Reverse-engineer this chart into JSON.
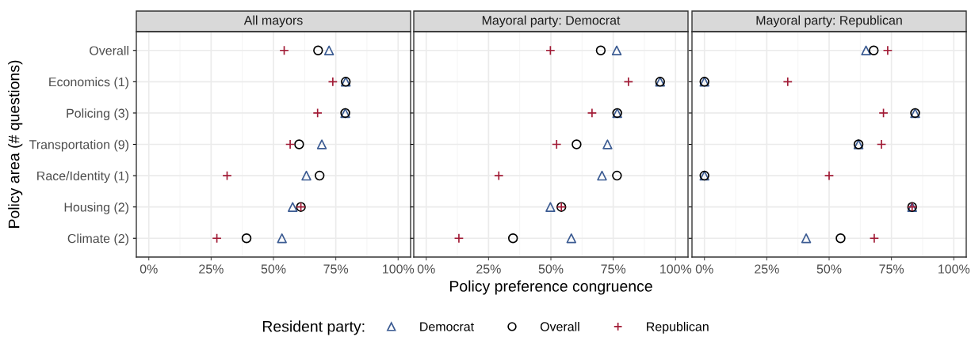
{
  "chart_data": [
    {
      "type": "scatter",
      "title": "All mayors",
      "ylabel": "Policy area (# questions)",
      "orientation": "horizontal",
      "categories": [
        "Overall",
        "Economics (1)",
        "Policing (3)",
        "Transportation (9)",
        "Race/Identity (1)",
        "Housing (2)",
        "Climate (2)"
      ],
      "xlim": [
        -5,
        105
      ],
      "xticks": [
        {
          "value": 0,
          "label": "0%"
        },
        {
          "value": 25,
          "label": "25%"
        },
        {
          "value": 50,
          "label": "50%"
        },
        {
          "value": 75,
          "label": "75%"
        },
        {
          "value": 100,
          "label": "100%"
        }
      ],
      "grid": true,
      "series": [
        {
          "color": "#3b5b92",
          "marker": "triangle",
          "values": [
            72.3,
            79,
            78.8,
            69.4,
            63.2,
            57.7,
            53.4
          ]
        },
        {
          "color": "#000000",
          "marker": "circle",
          "values": [
            67.9,
            79,
            78.8,
            60.3,
            68.5,
            61,
            39.2
          ]
        },
        {
          "color": "#a11a35",
          "marker": "cross",
          "values": [
            54.3,
            73.8,
            67.7,
            56.7,
            31.4,
            61,
            27.3
          ]
        }
      ]
    },
    {
      "type": "scatter",
      "title": "Mayoral party: Democrat",
      "xlabel": "Policy preference congruence",
      "legend_title": "Resident party:",
      "legend": "bottom",
      "tick_labels": "x",
      "orientation": "horizontal",
      "categories": [
        null,
        null,
        null,
        null,
        null,
        null,
        null
      ],
      "xlim": [
        -5,
        105
      ],
      "xticks": [
        {
          "value": 0,
          "label": "0%"
        },
        {
          "value": 25,
          "label": "25%"
        },
        {
          "value": 50,
          "label": "50%"
        },
        {
          "value": 75,
          "label": "75%"
        },
        {
          "value": 100,
          "label": "100%"
        }
      ],
      "grid": true,
      "series": [
        {
          "name": "Democrat",
          "color": "#3b5b92",
          "marker": "triangle",
          "values": [
            76.4,
            93.8,
            76.6,
            72.7,
            70.5,
            49.8,
            58.2
          ]
        },
        {
          "name": "Overall",
          "color": "#000000",
          "marker": "circle",
          "values": [
            70,
            93.8,
            76.6,
            60.3,
            76.5,
            54.2,
            34.8
          ]
        },
        {
          "name": "Republican",
          "color": "#a11a35",
          "marker": "cross",
          "values": [
            49.8,
            81.1,
            66.5,
            52.3,
            29.1,
            54.2,
            13.1
          ]
        }
      ]
    },
    {
      "type": "scatter",
      "title": "Mayoral party: Republican",
      "tick_labels": "x",
      "orientation": "horizontal",
      "categories": [
        null,
        null,
        null,
        null,
        null,
        null,
        null
      ],
      "xlim": [
        -5,
        105
      ],
      "xticks": [
        {
          "value": 0,
          "label": "0%"
        },
        {
          "value": 25,
          "label": "25%"
        },
        {
          "value": 50,
          "label": "50%"
        },
        {
          "value": 75,
          "label": "75%"
        },
        {
          "value": 100,
          "label": "100%"
        }
      ],
      "grid": true,
      "series": [
        {
          "color": "#3b5b92",
          "marker": "triangle",
          "values": [
            64.8,
            0,
            84.5,
            61.8,
            0,
            83.3,
            40.8
          ]
        },
        {
          "color": "#000000",
          "marker": "circle",
          "values": [
            67.9,
            0,
            84.5,
            61.8,
            0,
            83.3,
            54.6
          ]
        },
        {
          "color": "#a11a35",
          "marker": "cross",
          "values": [
            73.5,
            33.4,
            71.8,
            71,
            50,
            83.3,
            68.1
          ]
        }
      ]
    }
  ]
}
